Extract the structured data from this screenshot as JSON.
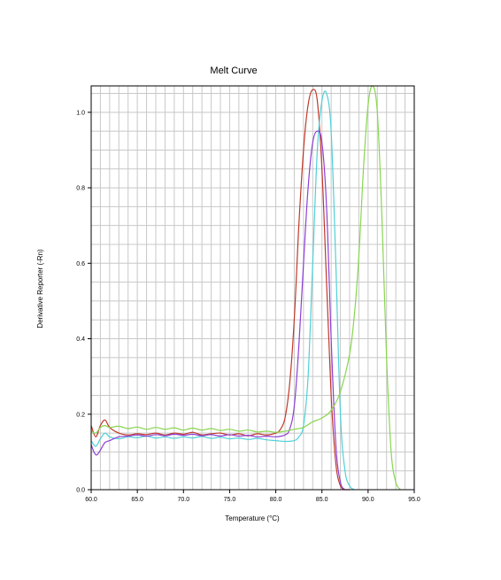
{
  "chart_data": {
    "type": "line",
    "title": "Melt Curve",
    "xlabel": "Temperature (°C)",
    "ylabel": "Derivative Reporter (-Rn)",
    "xlim": [
      60.0,
      95.0
    ],
    "ylim": [
      0.0,
      1.07
    ],
    "x_ticks": [
      "60.0",
      "65.0",
      "70.0",
      "75.0",
      "80.0",
      "85.0",
      "90.0",
      "95.0"
    ],
    "y_ticks": [
      "0.0",
      "0.2",
      "0.4",
      "0.6",
      "0.8",
      "1.0"
    ],
    "grid": true,
    "legend": "none",
    "series": [
      {
        "color": "#c0392b",
        "points": [
          [
            60.0,
            0.17
          ],
          [
            60.5,
            0.14
          ],
          [
            61.0,
            0.17
          ],
          [
            61.5,
            0.185
          ],
          [
            62.0,
            0.165
          ],
          [
            63.0,
            0.15
          ],
          [
            64.0,
            0.145
          ],
          [
            65.0,
            0.148
          ],
          [
            66.0,
            0.146
          ],
          [
            67.0,
            0.15
          ],
          [
            68.0,
            0.145
          ],
          [
            69.0,
            0.15
          ],
          [
            70.0,
            0.147
          ],
          [
            71.0,
            0.152
          ],
          [
            72.0,
            0.145
          ],
          [
            73.0,
            0.148
          ],
          [
            74.0,
            0.15
          ],
          [
            75.0,
            0.145
          ],
          [
            76.0,
            0.148
          ],
          [
            77.0,
            0.143
          ],
          [
            78.0,
            0.148
          ],
          [
            79.0,
            0.145
          ],
          [
            80.0,
            0.15
          ],
          [
            80.5,
            0.16
          ],
          [
            81.0,
            0.19
          ],
          [
            81.5,
            0.28
          ],
          [
            82.0,
            0.45
          ],
          [
            82.5,
            0.7
          ],
          [
            83.0,
            0.9
          ],
          [
            83.5,
            1.02
          ],
          [
            84.0,
            1.06
          ],
          [
            84.5,
            1.03
          ],
          [
            85.0,
            0.85
          ],
          [
            85.5,
            0.55
          ],
          [
            86.0,
            0.25
          ],
          [
            86.5,
            0.07
          ],
          [
            87.0,
            0.01
          ],
          [
            87.5,
            0.0
          ],
          [
            88.0,
            0.0
          ]
        ]
      },
      {
        "color": "#4fd0d8",
        "points": [
          [
            60.0,
            0.13
          ],
          [
            60.5,
            0.115
          ],
          [
            61.0,
            0.135
          ],
          [
            61.5,
            0.15
          ],
          [
            62.0,
            0.14
          ],
          [
            63.0,
            0.135
          ],
          [
            64.0,
            0.14
          ],
          [
            65.0,
            0.138
          ],
          [
            66.0,
            0.142
          ],
          [
            67.0,
            0.137
          ],
          [
            68.0,
            0.14
          ],
          [
            69.0,
            0.136
          ],
          [
            70.0,
            0.14
          ],
          [
            71.0,
            0.137
          ],
          [
            72.0,
            0.141
          ],
          [
            73.0,
            0.136
          ],
          [
            74.0,
            0.139
          ],
          [
            75.0,
            0.135
          ],
          [
            76.0,
            0.137
          ],
          [
            77.0,
            0.133
          ],
          [
            78.0,
            0.136
          ],
          [
            79.0,
            0.132
          ],
          [
            80.0,
            0.13
          ],
          [
            81.0,
            0.128
          ],
          [
            82.0,
            0.13
          ],
          [
            82.5,
            0.14
          ],
          [
            83.0,
            0.17
          ],
          [
            83.5,
            0.3
          ],
          [
            84.0,
            0.6
          ],
          [
            84.5,
            0.9
          ],
          [
            85.0,
            1.03
          ],
          [
            85.5,
            1.05
          ],
          [
            86.0,
            0.95
          ],
          [
            86.5,
            0.6
          ],
          [
            87.0,
            0.2
          ],
          [
            87.5,
            0.05
          ],
          [
            88.0,
            0.01
          ],
          [
            88.5,
            0.0
          ]
        ]
      },
      {
        "color": "#8e3fd6",
        "points": [
          [
            60.0,
            0.12
          ],
          [
            60.3,
            0.1
          ],
          [
            60.6,
            0.092
          ],
          [
            61.0,
            0.105
          ],
          [
            61.5,
            0.125
          ],
          [
            62.0,
            0.13
          ],
          [
            63.0,
            0.14
          ],
          [
            64.0,
            0.142
          ],
          [
            65.0,
            0.145
          ],
          [
            66.0,
            0.142
          ],
          [
            67.0,
            0.146
          ],
          [
            68.0,
            0.143
          ],
          [
            69.0,
            0.147
          ],
          [
            70.0,
            0.144
          ],
          [
            71.0,
            0.147
          ],
          [
            72.0,
            0.143
          ],
          [
            73.0,
            0.146
          ],
          [
            74.0,
            0.142
          ],
          [
            75.0,
            0.146
          ],
          [
            76.0,
            0.142
          ],
          [
            77.0,
            0.144
          ],
          [
            78.0,
            0.14
          ],
          [
            79.0,
            0.142
          ],
          [
            80.0,
            0.14
          ],
          [
            81.0,
            0.145
          ],
          [
            81.5,
            0.16
          ],
          [
            82.0,
            0.22
          ],
          [
            82.5,
            0.38
          ],
          [
            83.0,
            0.6
          ],
          [
            83.5,
            0.8
          ],
          [
            84.0,
            0.92
          ],
          [
            84.5,
            0.95
          ],
          [
            85.0,
            0.92
          ],
          [
            85.5,
            0.75
          ],
          [
            86.0,
            0.4
          ],
          [
            86.5,
            0.12
          ],
          [
            87.0,
            0.02
          ],
          [
            87.5,
            0.0
          ]
        ]
      },
      {
        "color": "#88d64f",
        "points": [
          [
            60.0,
            0.155
          ],
          [
            60.5,
            0.15
          ],
          [
            61.0,
            0.165
          ],
          [
            61.5,
            0.17
          ],
          [
            62.0,
            0.165
          ],
          [
            63.0,
            0.168
          ],
          [
            64.0,
            0.162
          ],
          [
            65.0,
            0.166
          ],
          [
            66.0,
            0.16
          ],
          [
            67.0,
            0.165
          ],
          [
            68.0,
            0.16
          ],
          [
            69.0,
            0.164
          ],
          [
            70.0,
            0.158
          ],
          [
            71.0,
            0.163
          ],
          [
            72.0,
            0.158
          ],
          [
            73.0,
            0.162
          ],
          [
            74.0,
            0.157
          ],
          [
            75.0,
            0.16
          ],
          [
            76.0,
            0.155
          ],
          [
            77.0,
            0.158
          ],
          [
            78.0,
            0.153
          ],
          [
            79.0,
            0.155
          ],
          [
            80.0,
            0.152
          ],
          [
            81.0,
            0.155
          ],
          [
            82.0,
            0.16
          ],
          [
            83.0,
            0.165
          ],
          [
            84.0,
            0.18
          ],
          [
            85.0,
            0.19
          ],
          [
            86.0,
            0.21
          ],
          [
            87.0,
            0.26
          ],
          [
            88.0,
            0.36
          ],
          [
            88.5,
            0.46
          ],
          [
            89.0,
            0.62
          ],
          [
            89.5,
            0.85
          ],
          [
            90.0,
            1.02
          ],
          [
            90.5,
            1.07
          ],
          [
            91.0,
            1.0
          ],
          [
            91.5,
            0.72
          ],
          [
            92.0,
            0.35
          ],
          [
            92.5,
            0.1
          ],
          [
            93.0,
            0.02
          ],
          [
            93.5,
            0.0
          ]
        ]
      }
    ]
  }
}
